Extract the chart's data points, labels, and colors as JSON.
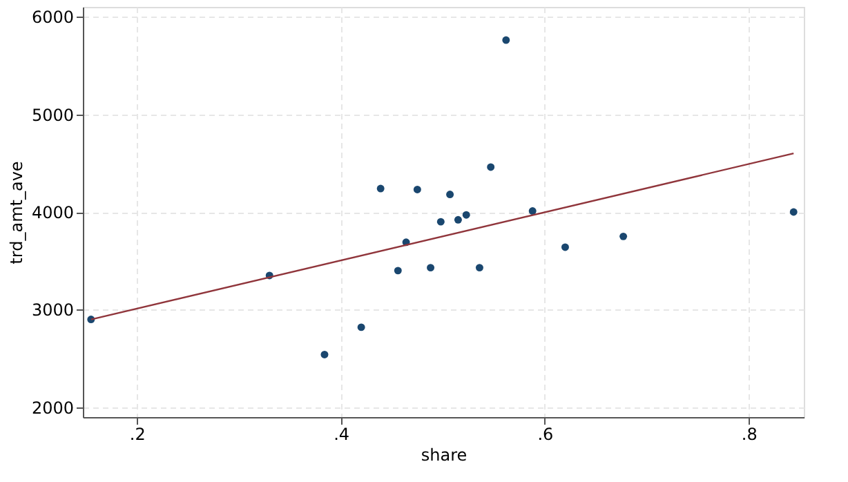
{
  "chart_data": {
    "type": "scatter",
    "xlabel": "share",
    "ylabel": "trd_amt_ave",
    "xlim": [
      0.147,
      0.854
    ],
    "ylim": [
      1900,
      6100
    ],
    "xticks": [
      {
        "value": 0.2,
        "label": ".2"
      },
      {
        "value": 0.4,
        "label": ".4"
      },
      {
        "value": 0.6,
        "label": ".6"
      },
      {
        "value": 0.8,
        "label": ".8"
      }
    ],
    "yticks": [
      2000,
      3000,
      4000,
      5000,
      6000
    ],
    "grid": true,
    "series": [
      {
        "color": "#1a476f",
        "marker": "circle",
        "x": [
          0.155,
          0.33,
          0.384,
          0.42,
          0.439,
          0.456,
          0.464,
          0.475,
          0.488,
          0.498,
          0.507,
          0.515,
          0.523,
          0.536,
          0.547,
          0.562,
          0.588,
          0.62,
          0.677,
          0.844
        ],
        "values": [
          2900,
          3350,
          2540,
          2820,
          4240,
          3400,
          3690,
          4230,
          3430,
          3900,
          4180,
          3920,
          3970,
          3430,
          4460,
          5760,
          4010,
          3640,
          3750,
          4000
        ]
      },
      {
        "type": "line",
        "color": "#90353b",
        "line_style": "solid",
        "marker": "none",
        "x": [
          0.155,
          0.844
        ],
        "values": [
          2900,
          4600
        ]
      }
    ]
  }
}
